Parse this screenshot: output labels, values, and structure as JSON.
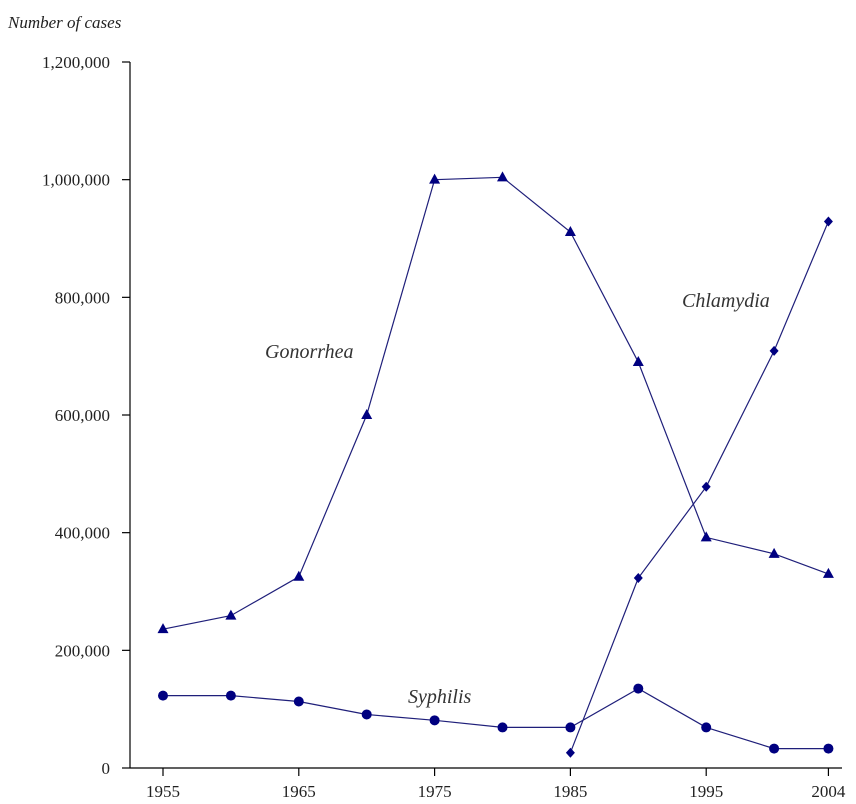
{
  "chart_data": {
    "type": "line",
    "ylabel": "Number of cases",
    "xlabel": "",
    "xlim": [
      1955,
      2005
    ],
    "ylim": [
      0,
      1200000
    ],
    "x_ticks": [
      1955,
      1965,
      1975,
      1985,
      1995,
      2004
    ],
    "y_ticks": [
      0,
      200000,
      400000,
      600000,
      800000,
      1000000,
      1200000
    ],
    "y_tick_labels": [
      "0",
      "200,000",
      "400,000",
      "600,000",
      "800,000",
      "1,000,000",
      "1,200,000"
    ],
    "x_tick_labels": [
      "1955",
      "1965",
      "1975",
      "1985",
      "1995",
      "2004"
    ],
    "grid": false,
    "legend": "none",
    "line_color": "#1f1f7a",
    "marker_color": "#000080",
    "series": [
      {
        "name": "Gonorrhea",
        "marker": "triangle",
        "x": [
          1955,
          1960,
          1965,
          1970,
          1975,
          1980,
          1985,
          1990,
          1995,
          2000,
          2004
        ],
        "values": [
          236000,
          259000,
          325000,
          600000,
          1000000,
          1004000,
          911000,
          690000,
          392000,
          364000,
          330000
        ]
      },
      {
        "name": "Chlamydia",
        "marker": "diamond",
        "x": [
          1985,
          1990,
          1995,
          2000,
          2004
        ],
        "values": [
          26000,
          323000,
          478000,
          709000,
          929000
        ]
      },
      {
        "name": "Syphilis",
        "marker": "circle",
        "x": [
          1955,
          1960,
          1965,
          1970,
          1975,
          1980,
          1985,
          1990,
          1995,
          2000,
          2004
        ],
        "values": [
          123000,
          123000,
          113000,
          91000,
          81000,
          69000,
          69000,
          135000,
          69000,
          33000,
          33000
        ]
      }
    ]
  }
}
